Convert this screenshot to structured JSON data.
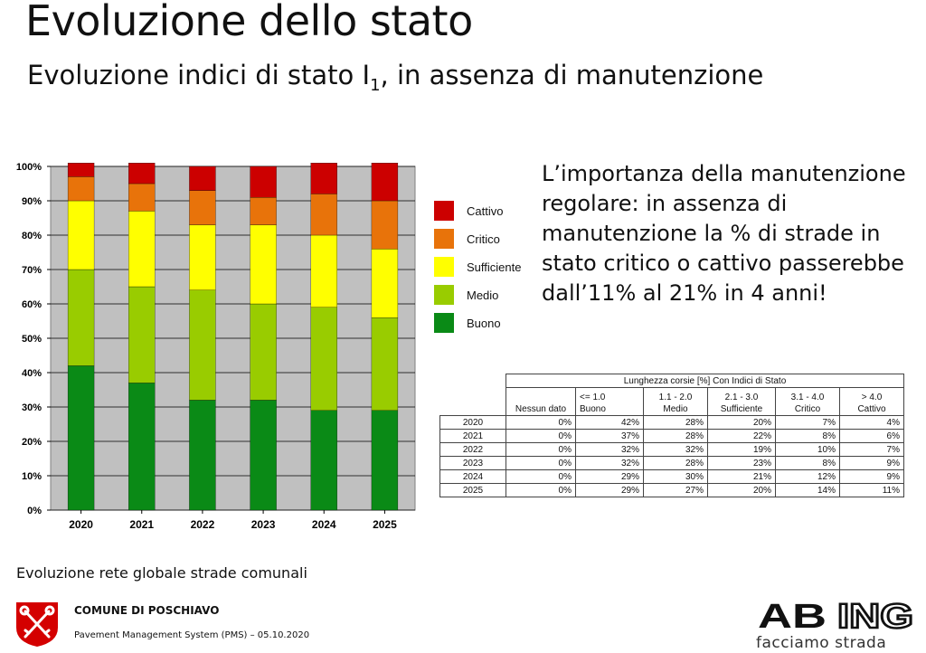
{
  "header": {
    "title": "Evoluzione dello stato",
    "subtitle_pre": "Evoluzione indici di stato I",
    "subtitle_sub": "1",
    "subtitle_post": ", in assenza di manutenzione"
  },
  "chart_data": {
    "type": "bar",
    "stacked": true,
    "categories": [
      "2020",
      "2021",
      "2022",
      "2023",
      "2024",
      "2025"
    ],
    "series": [
      {
        "name": "Buono",
        "color": "#0a8a16",
        "values": [
          42,
          37,
          32,
          32,
          29,
          29
        ]
      },
      {
        "name": "Medio",
        "color": "#99cc00",
        "values": [
          28,
          28,
          32,
          28,
          30,
          27
        ]
      },
      {
        "name": "Sufficiente",
        "color": "#ffff00",
        "values": [
          20,
          22,
          19,
          23,
          21,
          20
        ]
      },
      {
        "name": "Critico",
        "color": "#e8730a",
        "values": [
          7,
          8,
          10,
          8,
          12,
          14
        ]
      },
      {
        "name": "Cattivo",
        "color": "#cc0000",
        "values": [
          4,
          6,
          7,
          9,
          9,
          11
        ]
      }
    ],
    "ylim": [
      0,
      100
    ],
    "yticks": [
      "0%",
      "10%",
      "20%",
      "30%",
      "40%",
      "50%",
      "60%",
      "70%",
      "80%",
      "90%",
      "100%"
    ],
    "grid": true,
    "legend_position": "right",
    "plot_background": "#c0c0c0"
  },
  "legend": {
    "items": [
      {
        "label": "Cattivo",
        "color": "#cc0000"
      },
      {
        "label": "Critico",
        "color": "#e8730a"
      },
      {
        "label": "Sufficiente",
        "color": "#ffff00"
      },
      {
        "label": "Medio",
        "color": "#99cc00"
      },
      {
        "label": "Buono",
        "color": "#0a8a16"
      }
    ]
  },
  "note": "L’importanza della manutenzione regolare: in assenza di manutenzione la % di strade in stato critico o cattivo passerebbe dall’11% al 21% in 4 anni!",
  "table": {
    "title": "Lunghezza corsie [%] Con Indici di Stato",
    "columns": [
      {
        "range": "",
        "label": "Nessun dato"
      },
      {
        "range": "<= 1.0",
        "label": "Buono"
      },
      {
        "range": "1.1 - 2.0",
        "label": "Medio"
      },
      {
        "range": "2.1 - 3.0",
        "label": "Sufficiente"
      },
      {
        "range": "3.1 - 4.0",
        "label": "Critico"
      },
      {
        "range": "> 4.0",
        "label": "Cattivo"
      }
    ],
    "rows": [
      {
        "year": "2020",
        "values": [
          "0%",
          "42%",
          "28%",
          "20%",
          "7%",
          "4%"
        ]
      },
      {
        "year": "2021",
        "values": [
          "0%",
          "37%",
          "28%",
          "22%",
          "8%",
          "6%"
        ]
      },
      {
        "year": "2022",
        "values": [
          "0%",
          "32%",
          "32%",
          "19%",
          "10%",
          "7%"
        ]
      },
      {
        "year": "2023",
        "values": [
          "0%",
          "32%",
          "28%",
          "23%",
          "8%",
          "9%"
        ]
      },
      {
        "year": "2024",
        "values": [
          "0%",
          "29%",
          "30%",
          "21%",
          "12%",
          "9%"
        ]
      },
      {
        "year": "2025",
        "values": [
          "0%",
          "29%",
          "27%",
          "20%",
          "14%",
          "11%"
        ]
      }
    ]
  },
  "caption": "Evoluzione rete globale strade comunali",
  "footer": {
    "org": "COMUNE DI POSCHIAVO",
    "pms": "Pavement Management System (PMS) – 05.10.2020",
    "logo_left": "AB",
    "logo_right": "ING",
    "tagline": "facciamo strada",
    "logo_color": "#111111"
  }
}
